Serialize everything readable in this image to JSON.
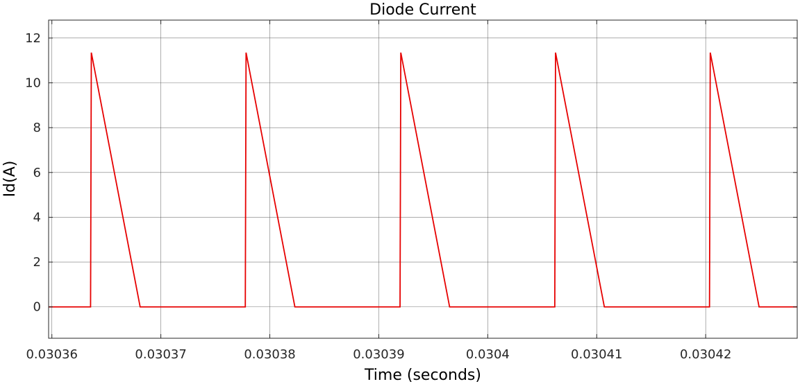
{
  "chart_data": {
    "type": "line",
    "title": "Diode Current",
    "xlabel": "Time (seconds)",
    "ylabel": "Id(A)",
    "xlim": [
      0.0303597,
      0.0304284
    ],
    "ylim": [
      -1.4,
      12.8
    ],
    "grid": true,
    "x_ticks": [
      0.03036,
      0.03037,
      0.03038,
      0.03039,
      0.0304,
      0.03041,
      0.03042
    ],
    "x_tick_labels": [
      "0.03036",
      "0.03037",
      "0.03038",
      "0.03039",
      "0.0304",
      "0.03041",
      "0.03042"
    ],
    "y_ticks": [
      0,
      2,
      4,
      6,
      8,
      10,
      12
    ],
    "y_tick_labels": [
      "0",
      "2",
      "4",
      "6",
      "8",
      "10",
      "12"
    ],
    "series": [
      {
        "color": "#e60000",
        "x": [
          0.0303597,
          0.03036355,
          0.03036362,
          0.0303681,
          0.03037775,
          0.03037782,
          0.0303823,
          0.03039195,
          0.03039202,
          0.0303965,
          0.03040615,
          0.03040622,
          0.0304107,
          0.03042035,
          0.03042042,
          0.0304249,
          0.0304284
        ],
        "y": [
          0,
          0,
          11.35,
          0,
          0,
          11.35,
          0,
          0,
          11.35,
          0,
          0,
          11.35,
          0,
          0,
          11.35,
          0,
          0
        ]
      }
    ]
  }
}
